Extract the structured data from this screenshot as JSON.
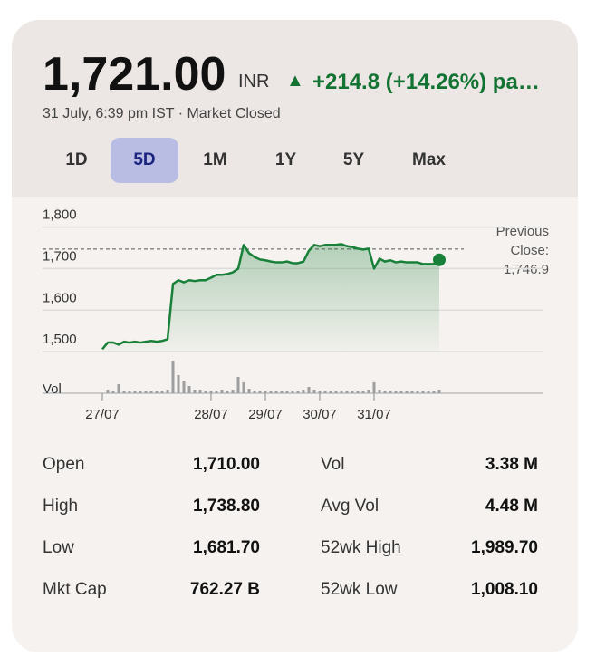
{
  "header": {
    "price": "1,721.00",
    "currency": "INR",
    "change": "+214.8 (+14.26%) pa…",
    "subtitle": "31 July, 6:39 pm IST · Market Closed"
  },
  "tabs": [
    "1D",
    "5D",
    "1M",
    "1Y",
    "5Y",
    "Max"
  ],
  "chart_data": {
    "type": "line",
    "categories": [
      "27/07",
      null,
      null,
      null,
      null,
      null,
      null,
      null,
      null,
      null,
      null,
      null,
      null,
      null,
      null,
      null,
      null,
      null,
      null,
      null,
      "28/07",
      null,
      null,
      null,
      null,
      null,
      null,
      null,
      null,
      null,
      "29/07",
      null,
      null,
      null,
      null,
      null,
      null,
      null,
      null,
      null,
      "30/07",
      null,
      null,
      null,
      null,
      null,
      null,
      null,
      null,
      null,
      "31/07",
      null,
      null,
      null,
      null,
      null,
      null,
      null,
      null,
      null,
      null,
      null,
      null
    ],
    "series": [
      {
        "color": "#188038",
        "values": [
          1506,
          1522,
          1522,
          1517,
          1524,
          1522,
          1524,
          1522,
          1524,
          1526,
          1524,
          1526,
          1530,
          1663,
          1672,
          1667,
          1672,
          1670,
          1672,
          1672,
          1678,
          1685,
          1685,
          1687,
          1691,
          1700,
          1757,
          1737,
          1728,
          1722,
          1720,
          1717,
          1715,
          1715,
          1717,
          1713,
          1713,
          1717,
          1743,
          1757,
          1754,
          1757,
          1757,
          1757,
          1759,
          1754,
          1752,
          1748,
          1746,
          1748,
          1700,
          1724,
          1717,
          1720,
          1715,
          1717,
          1715,
          1715,
          1715,
          1711,
          1711,
          1711,
          1721
        ]
      }
    ],
    "ylim": [
      1400,
      1820
    ],
    "yticks": [
      {
        "value": 1500,
        "label": "1,500"
      },
      {
        "value": 1600,
        "label": "1,600"
      },
      {
        "value": 1700,
        "label": "1,700"
      },
      {
        "value": 1800,
        "label": "1,800"
      }
    ],
    "grid": true,
    "previous_close": {
      "value": 1746.9,
      "label": "1,746.9"
    },
    "previous_close_title": "Previous Close:",
    "volume_label": "Vol",
    "volume": {
      "color": "#9e9e9e",
      "values": [
        0,
        4,
        2,
        10,
        2,
        2,
        3,
        2,
        2,
        3,
        2,
        3,
        4,
        36,
        20,
        14,
        8,
        4,
        4,
        3,
        3,
        3,
        4,
        3,
        4,
        18,
        12,
        5,
        3,
        3,
        3,
        2,
        2,
        2,
        2,
        3,
        3,
        4,
        7,
        4,
        3,
        3,
        2,
        3,
        3,
        3,
        3,
        3,
        3,
        4,
        12,
        4,
        3,
        3,
        2,
        2,
        2,
        2,
        2,
        3,
        2,
        3,
        4
      ],
      "ylim": [
        0,
        40
      ]
    }
  },
  "stats": {
    "left": [
      [
        "Open",
        "1,710.00"
      ],
      [
        "High",
        "1,738.80"
      ],
      [
        "Low",
        "1,681.70"
      ],
      [
        "Mkt Cap",
        "762.27 B"
      ]
    ],
    "right": [
      [
        "Vol",
        "3.38 M"
      ],
      [
        "Avg Vol",
        "4.48 M"
      ],
      [
        "52wk High",
        "1,989.70"
      ],
      [
        "52wk Low",
        "1,008.10"
      ]
    ]
  }
}
